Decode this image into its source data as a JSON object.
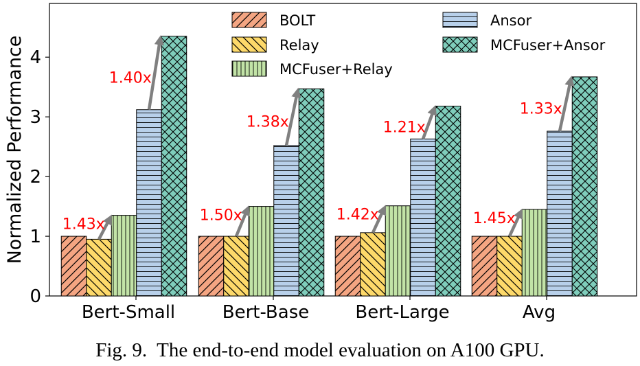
{
  "chart_data": {
    "type": "bar",
    "title": "",
    "xlabel": "",
    "ylabel": "Normalized Performance",
    "ylim": [
      0,
      4.9
    ],
    "yticks": [
      0,
      1,
      2,
      3,
      4
    ],
    "categories": [
      "Bert-Small",
      "Bert-Base",
      "Bert-Large",
      "Avg"
    ],
    "series": [
      {
        "name": "BOLT",
        "values": [
          1.0,
          1.0,
          1.0,
          1.0
        ],
        "color": "#f4a582",
        "hatch": "diag-right"
      },
      {
        "name": "Relay",
        "values": [
          0.95,
          1.0,
          1.06,
          1.0
        ],
        "color": "#fdd96a",
        "hatch": "diag-left"
      },
      {
        "name": "MCFuser+Relay",
        "values": [
          1.35,
          1.5,
          1.51,
          1.45
        ],
        "color": "#c2e3a7",
        "hatch": "vertical"
      },
      {
        "name": "Ansor",
        "values": [
          3.12,
          2.52,
          2.63,
          2.76
        ],
        "color": "#b8d0ea",
        "hatch": "horizontal"
      },
      {
        "name": "MCFuser+Ansor",
        "values": [
          4.35,
          3.47,
          3.18,
          3.67
        ],
        "color": "#7fcdbb",
        "hatch": "cross"
      }
    ],
    "annotations": {
      "relay_speedups": [
        "1.43x",
        "1.50x",
        "1.42x",
        "1.45x"
      ],
      "ansor_speedups": [
        "1.40x",
        "1.38x",
        "1.21x",
        "1.33x"
      ]
    },
    "legend_position": "top",
    "grid": false
  },
  "caption": "Fig. 9.  The end-to-end model evaluation on A100 GPU."
}
